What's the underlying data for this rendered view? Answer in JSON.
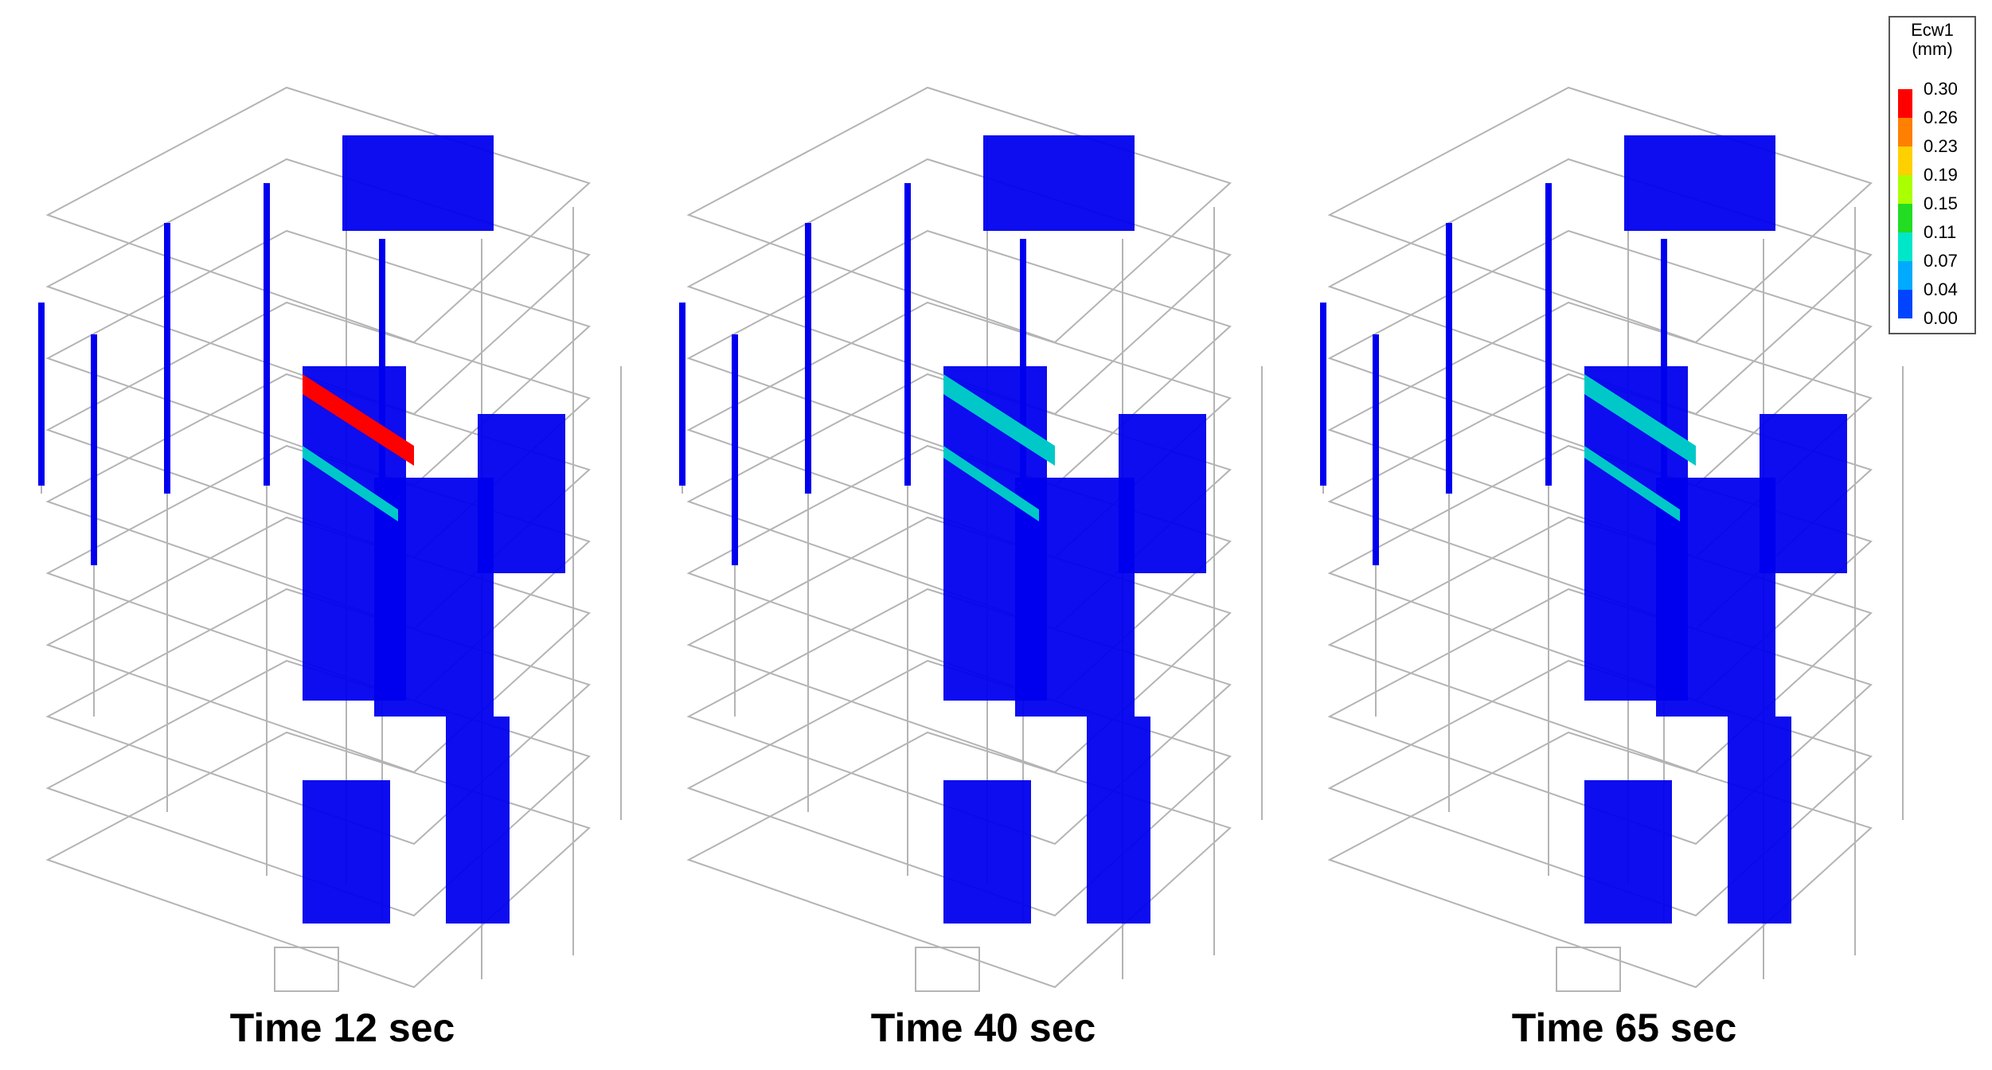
{
  "captions": [
    "Time 12 sec",
    "Time 40 sec",
    "Time 65 sec"
  ],
  "legend": {
    "title_line1": "Ecw1",
    "title_line2": "(mm)",
    "ticks": [
      "0.30",
      "0.26",
      "0.23",
      "0.19",
      "0.15",
      "0.11",
      "0.07",
      "0.04",
      "0.00"
    ],
    "colors": [
      "#ff0000",
      "#ff7f00",
      "#ffd000",
      "#aaff00",
      "#22dd22",
      "#00e6c8",
      "#00aaff",
      "#0044ff",
      "#0000ee"
    ]
  },
  "colors": {
    "frame_line": "#b4b4b4",
    "crack_base": "#0000ee",
    "crack_mid": "#00c8c8",
    "crack_high": "#ff0000"
  }
}
